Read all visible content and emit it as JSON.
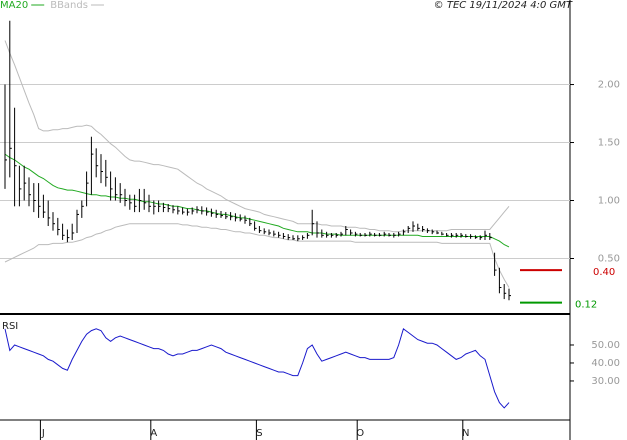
{
  "chart_data": [
    {
      "type": "ohlc",
      "source": "© TEC 19/11/2024 4:0 GMT",
      "categories": [
        null,
        null,
        null,
        null,
        null,
        null,
        null,
        null,
        "J",
        null,
        null,
        null,
        null,
        null,
        null,
        null,
        null,
        null,
        null,
        null,
        null,
        null,
        null,
        null,
        null,
        null,
        null,
        null,
        null,
        null,
        null,
        "A",
        null,
        null,
        null,
        null,
        null,
        null,
        null,
        null,
        null,
        null,
        null,
        null,
        null,
        null,
        null,
        null,
        null,
        null,
        null,
        null,
        null,
        "S",
        null,
        null,
        null,
        null,
        null,
        null,
        null,
        null,
        null,
        null,
        null,
        null,
        null,
        null,
        null,
        null,
        null,
        null,
        null,
        null,
        "O",
        null,
        null,
        null,
        null,
        null,
        null,
        null,
        null,
        null,
        null,
        null,
        null,
        null,
        null,
        null,
        null,
        null,
        null,
        null,
        null,
        null,
        "N",
        null,
        null,
        null,
        null,
        null,
        null,
        null,
        null,
        null
      ],
      "color": "#000000",
      "high": [
        2.0,
        2.55,
        1.8,
        1.3,
        1.3,
        1.2,
        1.15,
        1.15,
        1.05,
        1.0,
        0.9,
        0.85,
        0.8,
        0.75,
        0.8,
        0.92,
        1.0,
        1.25,
        1.55,
        1.45,
        1.4,
        1.35,
        1.25,
        1.2,
        1.15,
        1.1,
        1.05,
        1.05,
        1.1,
        1.1,
        1.05,
        1.0,
        1.0,
        0.98,
        0.97,
        0.96,
        0.95,
        0.94,
        0.93,
        0.94,
        0.95,
        0.95,
        0.94,
        0.93,
        0.92,
        0.91,
        0.9,
        0.9,
        0.89,
        0.88,
        0.87,
        0.85,
        0.82,
        0.78,
        0.76,
        0.75,
        0.74,
        0.73,
        0.72,
        0.71,
        0.7,
        0.7,
        0.7,
        0.72,
        0.92,
        0.82,
        0.75,
        0.73,
        0.72,
        0.72,
        0.73,
        0.78,
        0.75,
        0.73,
        0.72,
        0.72,
        0.73,
        0.72,
        0.72,
        0.73,
        0.72,
        0.72,
        0.73,
        0.75,
        0.78,
        0.82,
        0.8,
        0.78,
        0.76,
        0.75,
        0.74,
        0.73,
        0.72,
        0.72,
        0.72,
        0.72,
        0.71,
        0.71,
        0.7,
        0.7,
        0.74,
        0.72,
        0.55,
        0.42,
        0.28,
        0.24
      ],
      "low": [
        1.1,
        1.2,
        0.95,
        0.95,
        1.0,
        0.95,
        0.9,
        0.85,
        0.85,
        0.78,
        0.74,
        0.7,
        0.66,
        0.64,
        0.66,
        0.72,
        0.85,
        0.95,
        1.05,
        1.2,
        1.15,
        1.12,
        1.0,
        1.0,
        0.98,
        0.95,
        0.92,
        0.9,
        0.9,
        0.92,
        0.9,
        0.88,
        0.9,
        0.9,
        0.9,
        0.89,
        0.88,
        0.88,
        0.87,
        0.88,
        0.89,
        0.88,
        0.87,
        0.86,
        0.85,
        0.85,
        0.84,
        0.83,
        0.82,
        0.82,
        0.8,
        0.78,
        0.74,
        0.72,
        0.71,
        0.7,
        0.69,
        0.68,
        0.67,
        0.66,
        0.66,
        0.65,
        0.66,
        0.67,
        0.7,
        0.68,
        0.68,
        0.68,
        0.68,
        0.68,
        0.69,
        0.7,
        0.7,
        0.69,
        0.69,
        0.69,
        0.69,
        0.69,
        0.69,
        0.69,
        0.69,
        0.68,
        0.69,
        0.7,
        0.72,
        0.73,
        0.74,
        0.73,
        0.72,
        0.71,
        0.71,
        0.7,
        0.69,
        0.68,
        0.68,
        0.68,
        0.68,
        0.67,
        0.67,
        0.66,
        0.66,
        0.66,
        0.35,
        0.2,
        0.15,
        0.14
      ],
      "close": [
        1.35,
        1.45,
        1.3,
        1.1,
        1.15,
        1.05,
        1.0,
        0.95,
        0.9,
        0.85,
        0.8,
        0.75,
        0.7,
        0.68,
        0.72,
        0.88,
        0.95,
        1.15,
        1.4,
        1.3,
        1.25,
        1.2,
        1.1,
        1.05,
        1.05,
        1.0,
        0.98,
        0.95,
        1.0,
        0.98,
        0.95,
        0.95,
        0.95,
        0.94,
        0.93,
        0.92,
        0.91,
        0.9,
        0.9,
        0.91,
        0.92,
        0.91,
        0.9,
        0.89,
        0.88,
        0.87,
        0.86,
        0.86,
        0.85,
        0.84,
        0.83,
        0.8,
        0.76,
        0.74,
        0.73,
        0.72,
        0.71,
        0.7,
        0.69,
        0.68,
        0.67,
        0.67,
        0.68,
        0.7,
        0.8,
        0.72,
        0.7,
        0.7,
        0.7,
        0.7,
        0.71,
        0.75,
        0.72,
        0.71,
        0.7,
        0.7,
        0.71,
        0.7,
        0.7,
        0.71,
        0.7,
        0.7,
        0.71,
        0.73,
        0.76,
        0.78,
        0.76,
        0.75,
        0.74,
        0.73,
        0.72,
        0.71,
        0.7,
        0.7,
        0.7,
        0.7,
        0.69,
        0.69,
        0.68,
        0.68,
        0.7,
        0.68,
        0.4,
        0.25,
        0.2,
        0.18
      ],
      "series": [
        {
          "name": "MA20",
          "color": "#22aa22",
          "values": [
            1.4,
            1.37,
            1.35,
            1.32,
            1.29,
            1.27,
            1.24,
            1.21,
            1.19,
            1.16,
            1.13,
            1.11,
            1.1,
            1.09,
            1.09,
            1.08,
            1.07,
            1.06,
            1.05,
            1.05,
            1.04,
            1.04,
            1.03,
            1.03,
            1.02,
            1.02,
            1.01,
            1.01,
            1.0,
            0.99,
            0.99,
            0.98,
            0.97,
            0.97,
            0.96,
            0.95,
            0.95,
            0.94,
            0.93,
            0.93,
            0.92,
            0.91,
            0.91,
            0.9,
            0.89,
            0.88,
            0.88,
            0.87,
            0.86,
            0.85,
            0.85,
            0.84,
            0.83,
            0.82,
            0.81,
            0.8,
            0.79,
            0.78,
            0.76,
            0.75,
            0.74,
            0.73,
            0.73,
            0.73,
            0.72,
            0.72,
            0.72,
            0.71,
            0.71,
            0.71,
            0.7,
            0.7,
            0.7,
            0.7,
            0.7,
            0.7,
            0.7,
            0.7,
            0.7,
            0.7,
            0.7,
            0.7,
            0.7,
            0.7,
            0.7,
            0.7,
            0.7,
            0.69,
            0.69,
            0.69,
            0.69,
            0.69,
            0.69,
            0.69,
            0.69,
            0.69,
            0.69,
            0.69,
            0.69,
            0.69,
            0.69,
            0.69,
            0.67,
            0.65,
            0.62,
            0.6
          ]
        },
        {
          "name": "BBands",
          "color": "#bbbbbb",
          "upper": [
            2.38,
            2.27,
            2.17,
            2.06,
            1.95,
            1.84,
            1.74,
            1.62,
            1.6,
            1.6,
            1.61,
            1.61,
            1.62,
            1.62,
            1.63,
            1.64,
            1.64,
            1.65,
            1.64,
            1.6,
            1.57,
            1.53,
            1.49,
            1.46,
            1.42,
            1.38,
            1.35,
            1.34,
            1.34,
            1.33,
            1.32,
            1.31,
            1.31,
            1.3,
            1.29,
            1.28,
            1.27,
            1.24,
            1.21,
            1.18,
            1.15,
            1.13,
            1.1,
            1.08,
            1.06,
            1.04,
            1.01,
            0.99,
            0.97,
            0.95,
            0.93,
            0.92,
            0.91,
            0.9,
            0.88,
            0.87,
            0.86,
            0.85,
            0.84,
            0.83,
            0.82,
            0.8,
            0.8,
            0.8,
            0.8,
            0.8,
            0.79,
            0.79,
            0.78,
            0.78,
            0.78,
            0.77,
            0.77,
            0.77,
            0.76,
            0.76,
            0.75,
            0.75,
            0.74,
            0.74,
            0.74,
            0.73,
            0.73,
            0.74,
            0.74,
            0.74,
            0.74,
            0.74,
            0.74,
            0.74,
            0.74,
            0.74,
            0.74,
            0.75,
            0.75,
            0.75,
            0.75,
            0.75,
            0.75,
            0.75,
            0.75,
            0.75,
            0.8,
            0.85,
            0.9,
            0.95
          ],
          "lower": [
            0.47,
            0.49,
            0.51,
            0.53,
            0.55,
            0.57,
            0.59,
            0.62,
            0.62,
            0.62,
            0.63,
            0.63,
            0.63,
            0.64,
            0.64,
            0.65,
            0.66,
            0.68,
            0.69,
            0.71,
            0.72,
            0.74,
            0.75,
            0.77,
            0.78,
            0.79,
            0.8,
            0.8,
            0.8,
            0.8,
            0.8,
            0.8,
            0.8,
            0.8,
            0.8,
            0.8,
            0.8,
            0.79,
            0.79,
            0.78,
            0.78,
            0.77,
            0.77,
            0.76,
            0.76,
            0.75,
            0.75,
            0.74,
            0.73,
            0.73,
            0.72,
            0.72,
            0.71,
            0.7,
            0.7,
            0.69,
            0.68,
            0.68,
            0.67,
            0.66,
            0.66,
            0.65,
            0.65,
            0.65,
            0.65,
            0.65,
            0.65,
            0.65,
            0.65,
            0.65,
            0.65,
            0.65,
            0.65,
            0.64,
            0.64,
            0.64,
            0.64,
            0.64,
            0.64,
            0.64,
            0.64,
            0.64,
            0.64,
            0.64,
            0.64,
            0.64,
            0.64,
            0.64,
            0.64,
            0.64,
            0.64,
            0.63,
            0.63,
            0.63,
            0.63,
            0.63,
            0.63,
            0.63,
            0.63,
            0.63,
            0.63,
            0.63,
            0.5,
            0.4,
            0.32,
            0.25
          ]
        }
      ],
      "levels": [
        {
          "value": 0.4,
          "label": "0.40",
          "color": "#cc0000"
        },
        {
          "value": 0.12,
          "label": "0.12",
          "color": "#009900"
        }
      ],
      "ylim": [
        0.03,
        2.66
      ],
      "yticks": [
        {
          "value": 0.5,
          "label": "0.50"
        },
        {
          "value": 1,
          "label": "1.00"
        },
        {
          "value": 1.5,
          "label": "1.50"
        },
        {
          "value": 2,
          "label": "2.00"
        }
      ],
      "grid": true
    },
    {
      "type": "line",
      "title": "RSI",
      "series": [
        {
          "name": "RSI",
          "color": "#1a1acc",
          "values": [
            59,
            47,
            50,
            49,
            48,
            47,
            46,
            45,
            44,
            42,
            41,
            39,
            37,
            36,
            42,
            47,
            52,
            56,
            58,
            59,
            58,
            54,
            52,
            54,
            55,
            54,
            53,
            52,
            51,
            50,
            49,
            48,
            48,
            47,
            45,
            44,
            45,
            45,
            46,
            47,
            47,
            48,
            49,
            50,
            49,
            48,
            46,
            45,
            44,
            43,
            42,
            41,
            40,
            39,
            38,
            37,
            36,
            35,
            35,
            34,
            33,
            33,
            40,
            48,
            50,
            45,
            41,
            42,
            43,
            44,
            45,
            46,
            45,
            44,
            43,
            43,
            42,
            42,
            42,
            42,
            42,
            43,
            50,
            59,
            57,
            55,
            53,
            52,
            51,
            51,
            50,
            48,
            46,
            44,
            42,
            43,
            45,
            46,
            47,
            44,
            42,
            33,
            24,
            18,
            15,
            18
          ]
        }
      ],
      "ylim": [
        8.3,
        65
      ],
      "yticks": [
        {
          "value": 30,
          "label": "30.00"
        },
        {
          "value": 40,
          "label": "40.00"
        },
        {
          "value": 50,
          "label": "50.00"
        }
      ],
      "grid": false
    }
  ]
}
